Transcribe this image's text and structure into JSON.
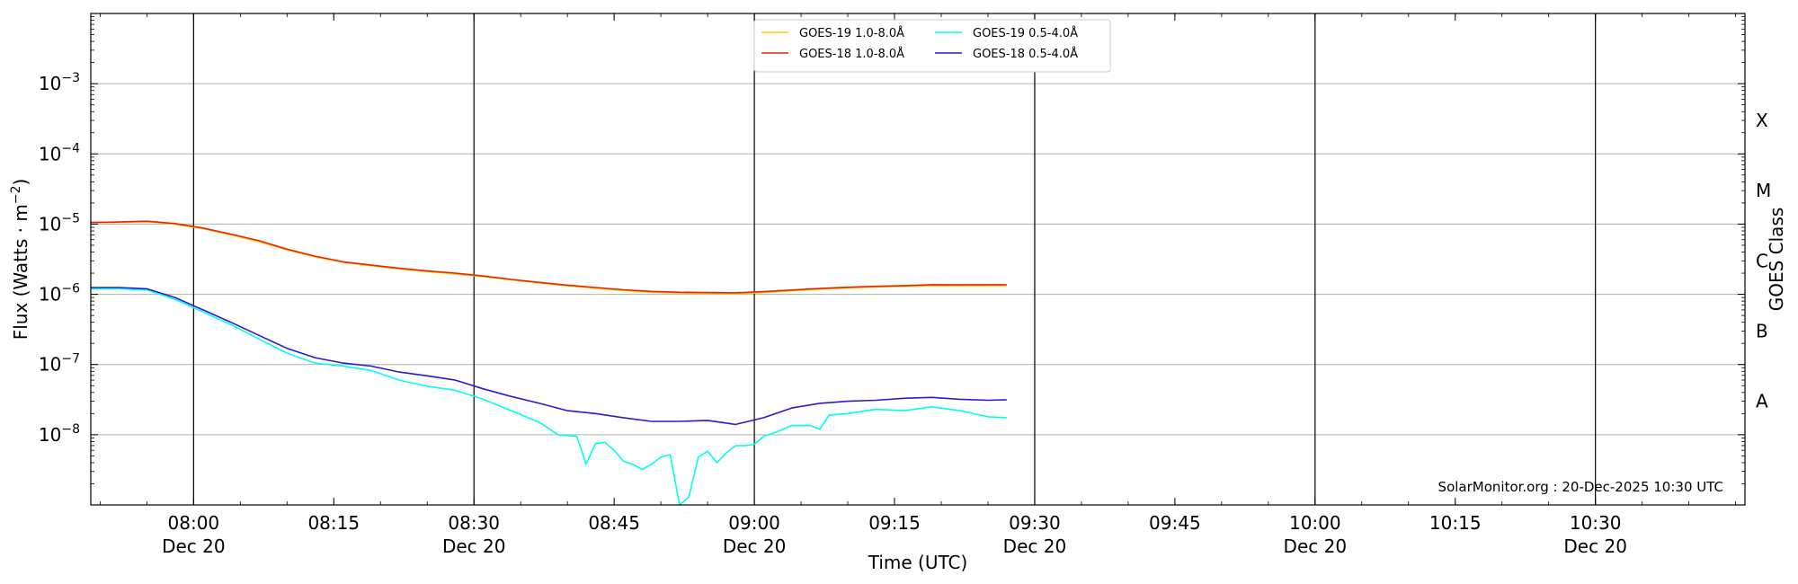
{
  "chart_data": {
    "type": "line",
    "xlabel": "Time (UTC)",
    "ylabel_prefix": "Flux (Watts · m",
    "ylabel_exp": "−2",
    "ylabel_suffix": ")",
    "right_label": "GOES Class",
    "watermark": "SolarMonitor.org : 20-Dec-2025 10:30 UTC",
    "y_scale": "log",
    "ylim": [
      1e-09,
      0.01
    ],
    "xlim": [
      "07:49",
      "10:46"
    ],
    "grid": "horizontal at decades",
    "legend_placement": "top-center",
    "x_ticks": [
      {
        "time": "08:00",
        "label": "08:00",
        "date": "Dec 20",
        "major": true
      },
      {
        "time": "08:15",
        "label": "08:15",
        "date": "",
        "major": false
      },
      {
        "time": "08:30",
        "label": "08:30",
        "date": "Dec 20",
        "major": true
      },
      {
        "time": "08:45",
        "label": "08:45",
        "date": "",
        "major": false
      },
      {
        "time": "09:00",
        "label": "09:00",
        "date": "Dec 20",
        "major": true
      },
      {
        "time": "09:15",
        "label": "09:15",
        "date": "",
        "major": false
      },
      {
        "time": "09:30",
        "label": "09:30",
        "date": "Dec 20",
        "major": true
      },
      {
        "time": "09:45",
        "label": "09:45",
        "date": "",
        "major": false
      },
      {
        "time": "10:00",
        "label": "10:00",
        "date": "Dec 20",
        "major": true
      },
      {
        "time": "10:15",
        "label": "10:15",
        "date": "",
        "major": false
      },
      {
        "time": "10:30",
        "label": "10:30",
        "date": "Dec 20",
        "major": true
      }
    ],
    "y_ticks": [
      {
        "exp": -8,
        "label_base": "10",
        "label_exp": "−8"
      },
      {
        "exp": -7,
        "label_base": "10",
        "label_exp": "−7"
      },
      {
        "exp": -6,
        "label_base": "10",
        "label_exp": "−6"
      },
      {
        "exp": -5,
        "label_base": "10",
        "label_exp": "−5"
      },
      {
        "exp": -4,
        "label_base": "10",
        "label_exp": "−4"
      },
      {
        "exp": -3,
        "label_base": "10",
        "label_exp": "−3"
      }
    ],
    "goes_classes": [
      {
        "label": "A",
        "flux": 3e-08
      },
      {
        "label": "B",
        "flux": 3e-07
      },
      {
        "label": "C",
        "flux": 3e-06
      },
      {
        "label": "M",
        "flux": 3e-05
      },
      {
        "label": "X",
        "flux": 0.0003
      }
    ],
    "series": [
      {
        "name": "GOES-19 1.0-8.0Å",
        "color": "#ffcc00",
        "x": [
          "07:49",
          "07:52",
          "07:55",
          "07:58",
          "08:01",
          "08:04",
          "08:07",
          "08:10",
          "08:13",
          "08:16",
          "08:19",
          "08:22",
          "08:25",
          "08:28",
          "08:31",
          "08:34",
          "08:37",
          "08:40",
          "08:43",
          "08:46",
          "08:49",
          "08:52",
          "08:55",
          "08:58",
          "09:01",
          "09:04",
          "09:07",
          "09:10",
          "09:13",
          "09:16",
          "09:19",
          "09:22",
          "09:25",
          "09:27"
        ],
        "values": [
          1.05e-05,
          1.06e-05,
          1.08e-05,
          1e-05,
          8.6e-06,
          7e-06,
          5.6e-06,
          4.3e-06,
          3.4e-06,
          2.85e-06,
          2.55e-06,
          2.3e-06,
          2.1e-06,
          1.95e-06,
          1.78e-06,
          1.6e-06,
          1.45e-06,
          1.32e-06,
          1.22e-06,
          1.13e-06,
          1.07e-06,
          1.04e-06,
          1.03e-06,
          1.02e-06,
          1.06e-06,
          1.12e-06,
          1.18e-06,
          1.23e-06,
          1.27e-06,
          1.3e-06,
          1.33e-06,
          1.32e-06,
          1.33e-06,
          1.33e-06
        ]
      },
      {
        "name": "GOES-18 1.0-8.0Å",
        "color": "#e8240c",
        "x": [
          "07:49",
          "07:52",
          "07:55",
          "07:58",
          "08:01",
          "08:04",
          "08:07",
          "08:10",
          "08:13",
          "08:16",
          "08:19",
          "08:22",
          "08:25",
          "08:28",
          "08:31",
          "08:34",
          "08:37",
          "08:40",
          "08:43",
          "08:46",
          "08:49",
          "08:52",
          "08:55",
          "08:58",
          "09:01",
          "09:04",
          "09:07",
          "09:10",
          "09:13",
          "09:16",
          "09:19",
          "09:22",
          "09:25",
          "09:27"
        ],
        "values": [
          1.06e-05,
          1.07e-05,
          1.1e-05,
          1.02e-05,
          8.8e-06,
          7.2e-06,
          5.8e-06,
          4.4e-06,
          3.5e-06,
          2.9e-06,
          2.6e-06,
          2.35e-06,
          2.15e-06,
          2e-06,
          1.82e-06,
          1.63e-06,
          1.48e-06,
          1.35e-06,
          1.25e-06,
          1.16e-06,
          1.1e-06,
          1.07e-06,
          1.06e-06,
          1.05e-06,
          1.09e-06,
          1.15e-06,
          1.21e-06,
          1.26e-06,
          1.3e-06,
          1.33e-06,
          1.37e-06,
          1.36e-06,
          1.37e-06,
          1.37e-06
        ]
      },
      {
        "name": "GOES-19 0.5-4.0Å",
        "color": "#00ffee",
        "x": [
          "07:49",
          "07:52",
          "07:55",
          "07:58",
          "08:01",
          "08:04",
          "08:07",
          "08:10",
          "08:13",
          "08:16",
          "08:19",
          "08:22",
          "08:25",
          "08:28",
          "08:31",
          "08:34",
          "08:37",
          "08:39",
          "08:41",
          "08:42",
          "08:43",
          "08:44",
          "08:45",
          "08:46",
          "08:47",
          "08:48",
          "08:49",
          "08:50",
          "08:51",
          "08:52",
          "08:53",
          "08:54",
          "08:55",
          "08:56",
          "08:57",
          "08:58",
          "08:59",
          "09:00",
          "09:01",
          "09:02",
          "09:04",
          "09:06",
          "09:07",
          "09:08",
          "09:10",
          "09:13",
          "09:16",
          "09:19",
          "09:22",
          "09:25",
          "09:27"
        ],
        "values": [
          1.2e-06,
          1.2e-06,
          1.15e-06,
          8.5e-07,
          5.6e-07,
          3.7e-07,
          2.3e-07,
          1.45e-07,
          1.05e-07,
          9.5e-08,
          8.2e-08,
          6e-08,
          4.9e-08,
          4.3e-08,
          3.2e-08,
          2.2e-08,
          1.5e-08,
          1e-08,
          9.5e-09,
          3.8e-09,
          7.5e-09,
          7.8e-09,
          6e-09,
          4.2e-09,
          3.8e-09,
          3.2e-09,
          3.8e-09,
          4.8e-09,
          5.2e-09,
          1e-09,
          1.3e-09,
          4.8e-09,
          5.8e-09,
          4e-09,
          5.5e-09,
          7e-09,
          7e-09,
          7.3e-09,
          9.5e-09,
          1.05e-08,
          1.35e-08,
          1.35e-08,
          1.2e-08,
          1.9e-08,
          2e-08,
          2.3e-08,
          2.2e-08,
          2.5e-08,
          2.2e-08,
          1.8e-08,
          1.75e-08
        ]
      },
      {
        "name": "GOES-18 0.5-4.0Å",
        "color": "#2a1bd2",
        "x": [
          "07:49",
          "07:52",
          "07:55",
          "07:58",
          "08:01",
          "08:04",
          "08:07",
          "08:10",
          "08:13",
          "08:16",
          "08:19",
          "08:22",
          "08:25",
          "08:28",
          "08:31",
          "08:34",
          "08:37",
          "08:40",
          "08:43",
          "08:46",
          "08:49",
          "08:52",
          "08:55",
          "08:58",
          "09:01",
          "09:04",
          "09:07",
          "09:10",
          "09:13",
          "09:16",
          "09:19",
          "09:22",
          "09:25",
          "09:27"
        ],
        "values": [
          1.25e-06,
          1.25e-06,
          1.2e-06,
          9e-07,
          6e-07,
          4e-07,
          2.6e-07,
          1.7e-07,
          1.25e-07,
          1.05e-07,
          9.5e-08,
          7.8e-08,
          6.9e-08,
          6e-08,
          4.5e-08,
          3.5e-08,
          2.8e-08,
          2.2e-08,
          2e-08,
          1.75e-08,
          1.55e-08,
          1.55e-08,
          1.6e-08,
          1.4e-08,
          1.75e-08,
          2.4e-08,
          2.8e-08,
          3e-08,
          3.1e-08,
          3.3e-08,
          3.4e-08,
          3.2e-08,
          3.1e-08,
          3.15e-08
        ]
      }
    ]
  }
}
